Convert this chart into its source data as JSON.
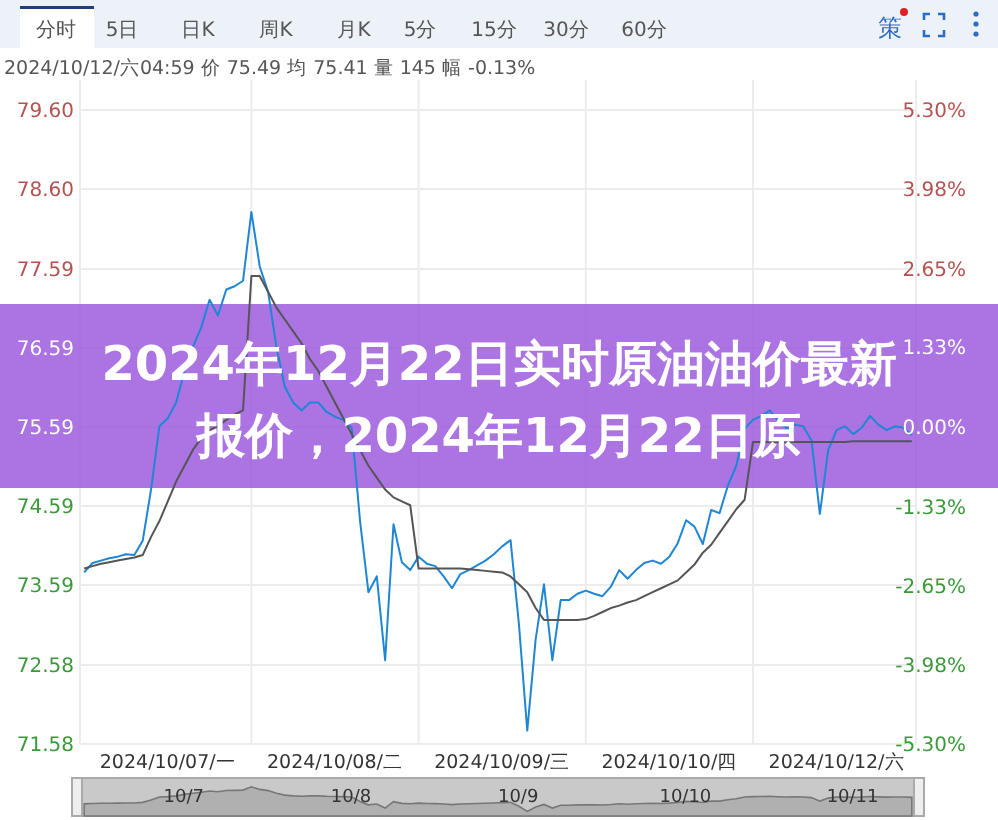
{
  "chart_data": {
    "type": "line",
    "title": "2024年12月22日实时原油油价最新报价，2024年12月22日原",
    "annotations": [
      "分时",
      "5日",
      "日K",
      "周K",
      "月K",
      "5分",
      "15分",
      "30分",
      "60分",
      "策",
      "2024/10/12/六04:59 价 75.49 均 75.41 量 145 幅 -0.13%",
      "10/7",
      "10/8",
      "10/9",
      "10/10",
      "10/11"
    ],
    "categories": [
      null,
      null,
      null,
      null,
      null,
      null,
      null,
      null,
      null,
      null,
      "2024/10/07/一",
      null,
      null,
      null,
      null,
      null,
      null,
      null,
      null,
      null,
      null,
      null,
      null,
      null,
      null,
      null,
      null,
      null,
      null,
      null,
      "2024/10/08/二",
      null,
      null,
      null,
      null,
      null,
      null,
      null,
      null,
      null,
      null,
      null,
      null,
      null,
      null,
      null,
      null,
      null,
      null,
      null,
      "2024/10/09/三",
      null,
      null,
      null,
      null,
      null,
      null,
      null,
      null,
      null,
      null,
      null,
      null,
      null,
      null,
      null,
      null,
      null,
      null,
      null,
      "2024/10/10/四",
      null,
      null,
      null,
      null,
      null,
      null,
      null,
      null,
      null,
      null,
      null,
      null,
      null,
      null,
      null,
      null,
      null,
      null,
      null,
      "2024/10/12/六",
      null,
      null,
      null,
      null,
      null,
      null,
      null,
      null,
      null
    ],
    "ylim": [
      71.58,
      79.6
    ],
    "yticks": [
      {
        "value": 71.58,
        "label": "71.58"
      },
      {
        "value": 72.58,
        "label": "72.58"
      },
      {
        "value": 73.59,
        "label": "73.59"
      },
      {
        "value": 74.59,
        "label": "74.59"
      },
      {
        "value": 75.59,
        "label": "75.59"
      },
      {
        "value": 76.59,
        "label": "76.59"
      },
      {
        "value": 77.59,
        "label": "77.59"
      },
      {
        "value": 78.6,
        "label": "78.60"
      },
      {
        "value": 79.6,
        "label": "79.60"
      }
    ],
    "y2lim": [
      -5.3,
      5.3
    ],
    "y2ticks": [
      {
        "value": -5.3,
        "label": "-5.30%"
      },
      {
        "value": -3.98,
        "label": "-3.98%"
      },
      {
        "value": -2.65,
        "label": "-2.65%"
      },
      {
        "value": -1.33,
        "label": "-1.33%"
      },
      {
        "value": 0,
        "label": "0.00%"
      },
      {
        "value": 1.33,
        "label": "1.33%"
      },
      {
        "value": 2.65,
        "label": "2.65%"
      },
      {
        "value": 3.98,
        "label": "3.98%"
      },
      {
        "value": 5.3,
        "label": "5.30%"
      }
    ],
    "grid": true,
    "line_style": "solid",
    "marker": "none",
    "series": [
      {
        "color": "#1f86d6",
        "values": [
          73.75,
          73.87,
          73.9,
          73.93,
          73.95,
          73.98,
          73.97,
          74.15,
          74.8,
          75.6,
          75.7,
          75.9,
          76.3,
          76.6,
          76.85,
          77.2,
          77.0,
          77.33,
          77.37,
          77.44,
          78.31,
          77.62,
          77.3,
          76.6,
          76.1,
          75.9,
          75.8,
          75.9,
          75.9,
          75.78,
          75.72,
          75.68,
          75.58,
          74.4,
          73.5,
          73.7,
          72.64,
          74.36,
          73.88,
          73.78,
          73.95,
          73.86,
          73.83,
          73.7,
          73.55,
          73.73,
          73.78,
          73.84,
          73.9,
          73.98,
          74.08,
          74.16,
          73.1,
          71.75,
          72.9,
          73.6,
          72.64,
          73.4,
          73.4,
          73.48,
          73.52,
          73.48,
          73.45,
          73.57,
          73.78,
          73.67,
          73.78,
          73.87,
          73.9,
          73.86,
          73.95,
          74.12,
          74.41,
          74.33,
          74.11,
          74.54,
          74.5,
          74.85,
          75.1,
          75.57,
          75.68,
          75.73,
          75.8,
          75.67,
          75.57,
          75.62,
          75.6,
          75.42,
          74.49,
          75.3,
          75.55,
          75.6,
          75.5,
          75.58,
          75.73,
          75.62,
          75.55,
          75.6,
          75.58,
          75.49
        ]
      },
      {
        "color": "#555555",
        "values": [
          73.8,
          73.83,
          73.86,
          73.88,
          73.9,
          73.92,
          73.94,
          73.97,
          74.2,
          74.4,
          74.65,
          74.9,
          75.1,
          75.3,
          75.45,
          75.55,
          75.6,
          75.68,
          75.75,
          75.8,
          77.5,
          77.5,
          77.3,
          77.1,
          76.95,
          76.8,
          76.65,
          76.45,
          76.3,
          76.1,
          75.9,
          75.7,
          75.5,
          75.3,
          75.1,
          74.95,
          74.8,
          74.7,
          74.65,
          74.6,
          73.8,
          73.8,
          73.8,
          73.8,
          73.8,
          73.8,
          73.79,
          73.78,
          73.77,
          73.76,
          73.75,
          73.7,
          73.6,
          73.5,
          73.3,
          73.15,
          73.15,
          73.15,
          73.15,
          73.15,
          73.16,
          73.2,
          73.25,
          73.3,
          73.33,
          73.37,
          73.4,
          73.45,
          73.5,
          73.55,
          73.6,
          73.65,
          73.75,
          73.85,
          74.0,
          74.1,
          74.25,
          74.4,
          74.55,
          74.67,
          75.4,
          75.4,
          75.4,
          75.4,
          75.4,
          75.4,
          75.4,
          75.4,
          75.4,
          75.4,
          75.4,
          75.4,
          75.41,
          75.41,
          75.41,
          75.41,
          75.41,
          75.41,
          75.41,
          75.41
        ]
      }
    ]
  }
}
